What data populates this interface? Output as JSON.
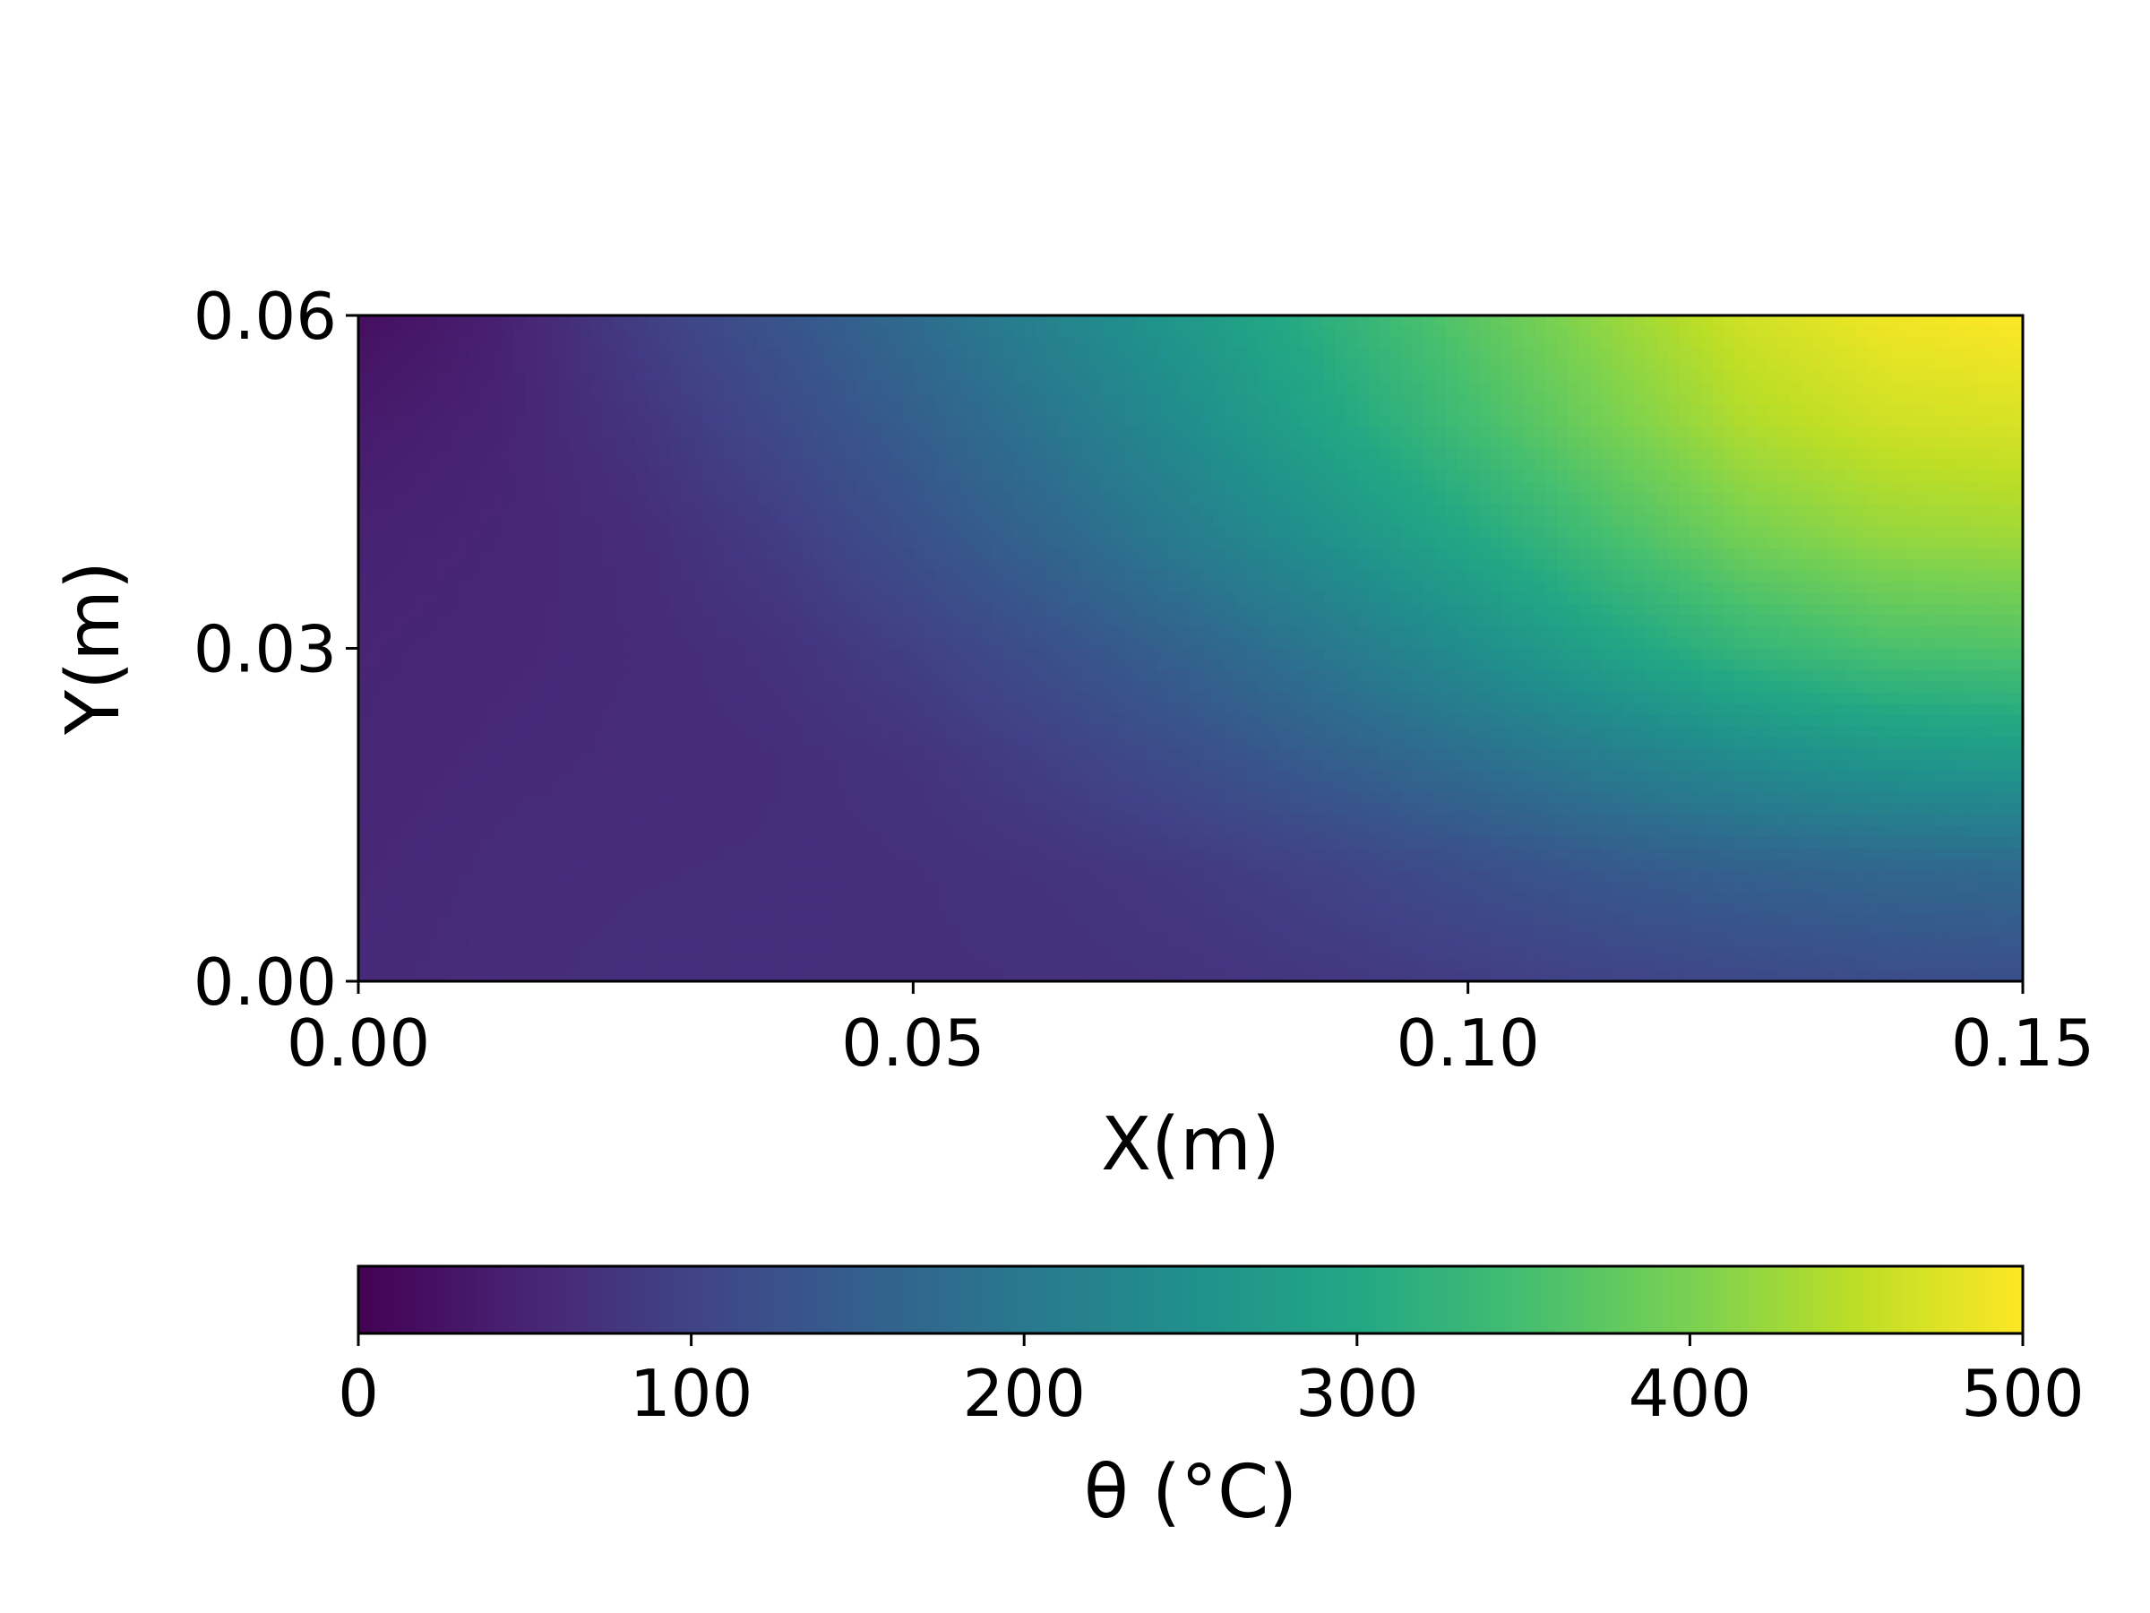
{
  "chart_data": {
    "type": "heatmap",
    "title": "",
    "xlabel": "X(m)",
    "ylabel": "Y(m)",
    "xlim": [
      0.0,
      0.15
    ],
    "ylim": [
      0.0,
      0.06
    ],
    "x_ticks": [
      0.0,
      0.05,
      0.1,
      0.15
    ],
    "x_tick_labels": [
      "0.00",
      "0.05",
      "0.10",
      "0.15"
    ],
    "y_ticks": [
      0.0,
      0.03,
      0.06
    ],
    "y_tick_labels": [
      "0.00",
      "0.03",
      "0.06"
    ],
    "grid": false,
    "colormap": "viridis",
    "colorbar": {
      "label": "θ (°C)",
      "orientation": "horizontal",
      "placement": "bottom",
      "range": [
        0,
        500
      ],
      "ticks": [
        0,
        100,
        200,
        300,
        400,
        500
      ],
      "tick_labels": [
        "0",
        "100",
        "200",
        "300",
        "400",
        "500"
      ]
    },
    "x": [
      0.0,
      0.0125,
      0.025,
      0.0375,
      0.05,
      0.0625,
      0.075,
      0.0875,
      0.1,
      0.1125,
      0.125,
      0.1375,
      0.15
    ],
    "y": [
      0.0,
      0.01,
      0.02,
      0.03,
      0.04,
      0.05,
      0.06
    ],
    "values": [
      [
        60,
        65,
        68,
        68,
        68,
        70,
        75,
        82,
        90,
        100,
        110,
        118,
        122
      ],
      [
        58,
        63,
        66,
        67,
        69,
        75,
        85,
        100,
        120,
        140,
        155,
        165,
        170
      ],
      [
        55,
        60,
        63,
        66,
        75,
        95,
        120,
        150,
        180,
        210,
        240,
        262,
        272
      ],
      [
        52,
        57,
        62,
        72,
        95,
        125,
        160,
        200,
        245,
        290,
        330,
        355,
        362
      ],
      [
        48,
        54,
        64,
        88,
        125,
        165,
        210,
        255,
        300,
        350,
        395,
        420,
        428
      ],
      [
        38,
        50,
        75,
        110,
        150,
        195,
        245,
        295,
        345,
        395,
        440,
        462,
        470
      ],
      [
        20,
        45,
        90,
        130,
        175,
        225,
        270,
        320,
        370,
        420,
        465,
        490,
        500
      ]
    ]
  }
}
